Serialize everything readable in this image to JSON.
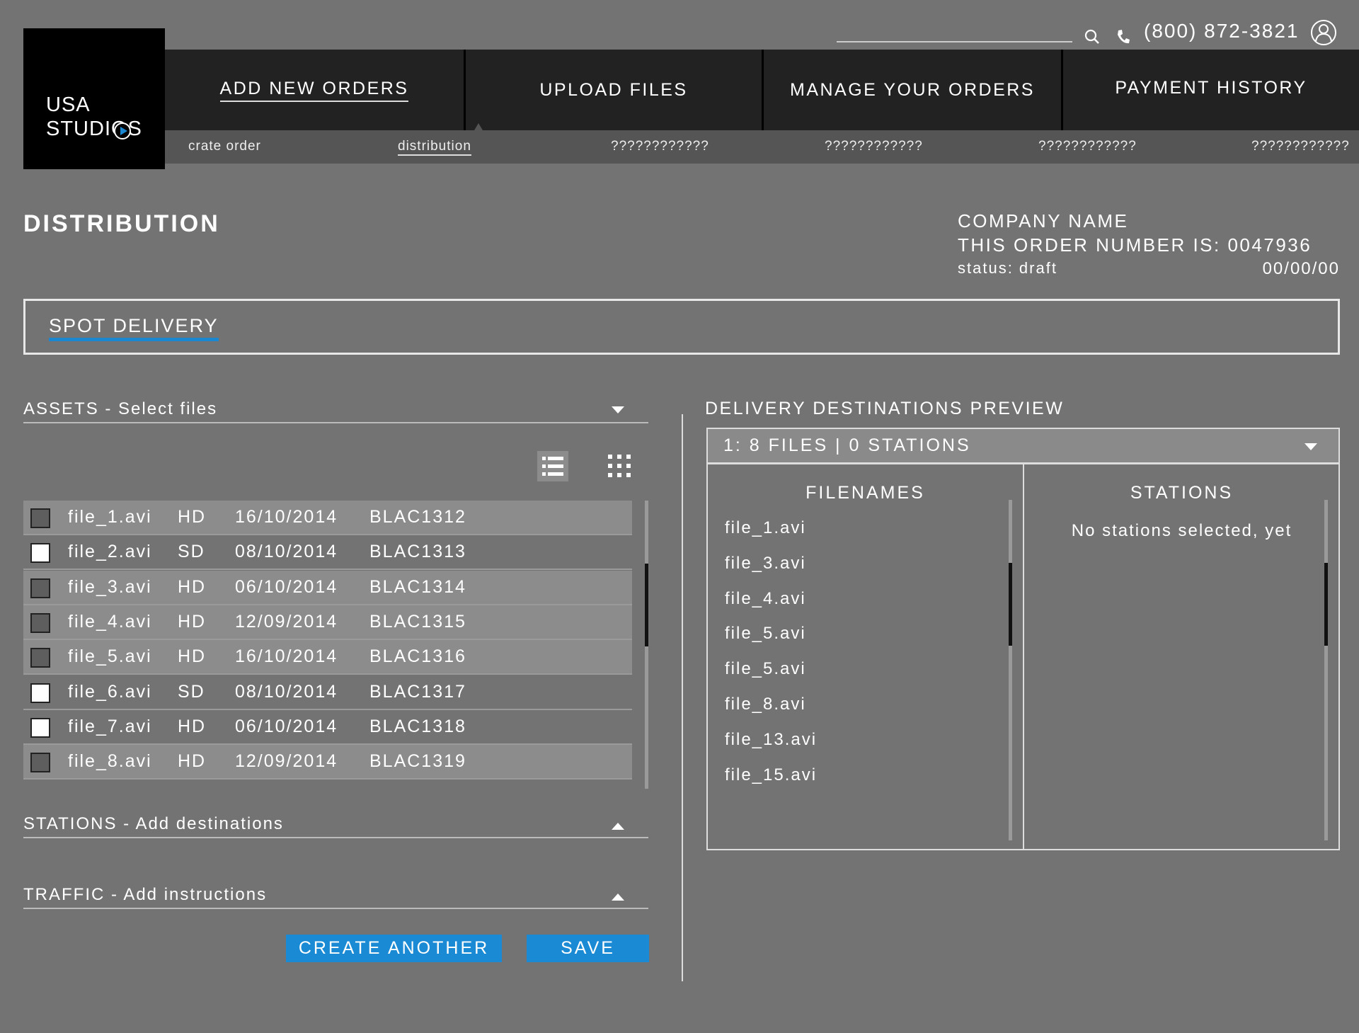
{
  "brand": {
    "line1": "USA",
    "line2": "STUDIOS",
    "accent": "#1b87d0"
  },
  "topbar": {
    "search_placeholder": "",
    "phone": "(800) 872-3821",
    "icons": [
      "search-icon",
      "phone-icon",
      "user-icon"
    ]
  },
  "nav": {
    "tabs": [
      {
        "label": "ADD NEW ORDERS",
        "active": true
      },
      {
        "label": "UPLOAD FILES"
      },
      {
        "label": "MANAGE YOUR ORDERS"
      },
      {
        "label": "PAYMENT HISTORY"
      }
    ]
  },
  "subnav": {
    "items": [
      {
        "label": "crate order"
      },
      {
        "label": "distribution",
        "active": true
      },
      {
        "label": "????????????"
      },
      {
        "label": "????????????"
      },
      {
        "label": "????????????"
      },
      {
        "label": "????????????"
      }
    ]
  },
  "page": {
    "title": "DISTRIBUTION",
    "company": "COMPANY NAME",
    "order_label": "THIS ORDER NUMBER IS: 0047936",
    "status": "status: draft",
    "date": "00/00/00"
  },
  "spot_tab": "SPOT DELIVERY",
  "assets": {
    "title": "ASSETS - Select files",
    "rows": [
      {
        "name": "file_1.avi",
        "quality": "HD",
        "date": "16/10/2014",
        "code": "BLAC1312",
        "selected": true
      },
      {
        "name": "file_2.avi",
        "quality": "SD",
        "date": "08/10/2014",
        "code": "BLAC1313",
        "selected": false
      },
      {
        "name": "file_3.avi",
        "quality": "HD",
        "date": "06/10/2014",
        "code": "BLAC1314",
        "selected": true
      },
      {
        "name": "file_4.avi",
        "quality": "HD",
        "date": "12/09/2014",
        "code": "BLAC1315",
        "selected": true
      },
      {
        "name": "file_5.avi",
        "quality": "HD",
        "date": "16/10/2014",
        "code": "BLAC1316",
        "selected": true
      },
      {
        "name": "file_6.avi",
        "quality": "SD",
        "date": "08/10/2014",
        "code": "BLAC1317",
        "selected": false
      },
      {
        "name": "file_7.avi",
        "quality": "HD",
        "date": "06/10/2014",
        "code": "BLAC1318",
        "selected": false
      },
      {
        "name": "file_8.avi",
        "quality": "HD",
        "date": "12/09/2014",
        "code": "BLAC1319",
        "selected": true
      }
    ]
  },
  "stations": {
    "title": "STATIONS - Add destinations"
  },
  "traffic": {
    "title": "TRAFFIC - Add instructions"
  },
  "buttons": {
    "create_another": "CREATE ANOTHER",
    "save": "SAVE",
    "color": "#1a8ad4"
  },
  "preview": {
    "title": "DELIVERY DESTINATIONS PREVIEW",
    "dropdown": "1: 8 FILES | 0 STATIONS",
    "filenames_header": "FILENAMES",
    "stations_header": "STATIONS",
    "stations_empty": "No stations selected, yet",
    "files": [
      "file_1.avi",
      "file_3.avi",
      "file_4.avi",
      "file_5.avi",
      "file_5.avi",
      "file_8.avi",
      "file_13.avi",
      "file_15.avi"
    ]
  }
}
